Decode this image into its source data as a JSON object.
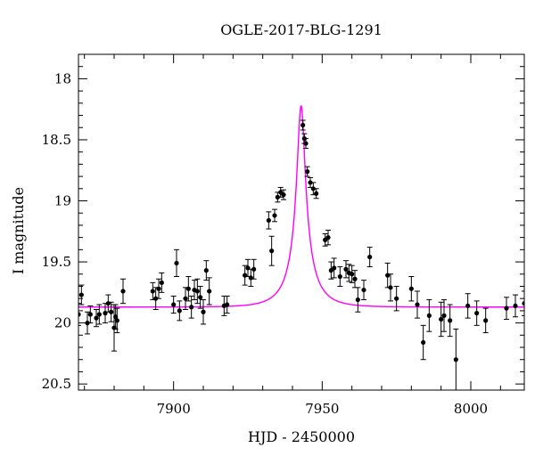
{
  "chart_data": {
    "type": "scatter",
    "title": "OGLE-2017-BLG-1291",
    "xlabel": "HJD - 2450000",
    "ylabel": "I magnitude",
    "xlim": [
      7868,
      8018
    ],
    "ylim": [
      20.55,
      17.8
    ],
    "y_inverted": true,
    "x_ticks": [
      7900,
      7950,
      8000
    ],
    "y_ticks": [
      18,
      18.5,
      19,
      19.5,
      20,
      20.5
    ],
    "x_tick_labels": [
      "7900",
      "7950",
      "8000"
    ],
    "y_tick_labels": [
      "18",
      "18.5",
      "19",
      "19.5",
      "20",
      "20.5"
    ],
    "x_minor_step": 10,
    "y_minor_step": 0.1,
    "grid": false,
    "legend": "none",
    "colors": {
      "points": "#000000",
      "model": "#ff00ff",
      "axes": "#000000"
    },
    "model_curve": {
      "t0": 7942.9,
      "peak_mag": 18.22,
      "baseline_mag": 19.87,
      "tE": 8.5,
      "u0": 0.17
    },
    "series": [
      {
        "type": "errorbar",
        "x": [
          7868,
          7869,
          7871,
          7872,
          7874,
          7875,
          7877,
          7878,
          7879,
          7880,
          7880.5,
          7881,
          7883,
          7893,
          7894,
          7895,
          7896,
          7900,
          7901,
          7902,
          7904,
          7905,
          7906,
          7907,
          7908,
          7909,
          7910,
          7911,
          7912,
          7917,
          7918,
          7924,
          7925,
          7926,
          7927,
          7932,
          7933,
          7934,
          7935,
          7936,
          7937,
          7943.5,
          7944,
          7944.5,
          7945,
          7946,
          7947,
          7948,
          7951,
          7952,
          7953,
          7954,
          7956,
          7958,
          7959,
          7960,
          7961,
          7962,
          7964,
          7966,
          7972,
          7973,
          7975,
          7980,
          7982,
          7984,
          7986,
          7990,
          7991,
          7993,
          7995,
          7999,
          8002,
          8005,
          8012,
          8015,
          8018
        ],
        "y": [
          19.93,
          19.77,
          20.0,
          19.93,
          19.96,
          19.93,
          19.92,
          19.84,
          19.91,
          20.04,
          19.95,
          19.98,
          19.74,
          19.74,
          19.8,
          19.72,
          19.67,
          19.85,
          19.51,
          19.9,
          19.8,
          19.72,
          19.87,
          19.73,
          19.74,
          19.79,
          19.91,
          19.57,
          19.74,
          19.86,
          19.85,
          19.61,
          19.55,
          19.63,
          19.56,
          19.16,
          19.41,
          19.12,
          18.97,
          18.93,
          18.95,
          18.38,
          18.49,
          18.53,
          18.76,
          18.85,
          18.9,
          18.94,
          19.32,
          19.3,
          19.57,
          19.55,
          19.62,
          19.56,
          19.59,
          19.6,
          19.64,
          19.81,
          19.73,
          19.46,
          19.61,
          19.71,
          19.8,
          19.72,
          19.85,
          20.16,
          19.94,
          19.97,
          19.94,
          19.98,
          20.3,
          19.86,
          19.92,
          19.98,
          19.88,
          19.86,
          19.84
        ],
        "yerr": [
          0.09,
          0.08,
          0.09,
          0.07,
          0.07,
          0.08,
          0.08,
          0.07,
          0.08,
          0.19,
          0.1,
          0.1,
          0.1,
          0.07,
          0.09,
          0.08,
          0.08,
          0.07,
          0.11,
          0.08,
          0.09,
          0.1,
          0.09,
          0.08,
          0.1,
          0.09,
          0.1,
          0.08,
          0.11,
          0.08,
          0.07,
          0.08,
          0.07,
          0.07,
          0.08,
          0.07,
          0.12,
          0.05,
          0.04,
          0.04,
          0.04,
          0.04,
          0.04,
          0.04,
          0.04,
          0.04,
          0.05,
          0.04,
          0.05,
          0.06,
          0.07,
          0.08,
          0.08,
          0.07,
          0.07,
          0.07,
          0.07,
          0.1,
          0.08,
          0.08,
          0.1,
          0.11,
          0.1,
          0.1,
          0.11,
          0.14,
          0.13,
          0.14,
          0.13,
          0.13,
          0.25,
          0.1,
          0.1,
          0.1,
          0.09,
          0.09,
          0.1
        ]
      }
    ]
  }
}
